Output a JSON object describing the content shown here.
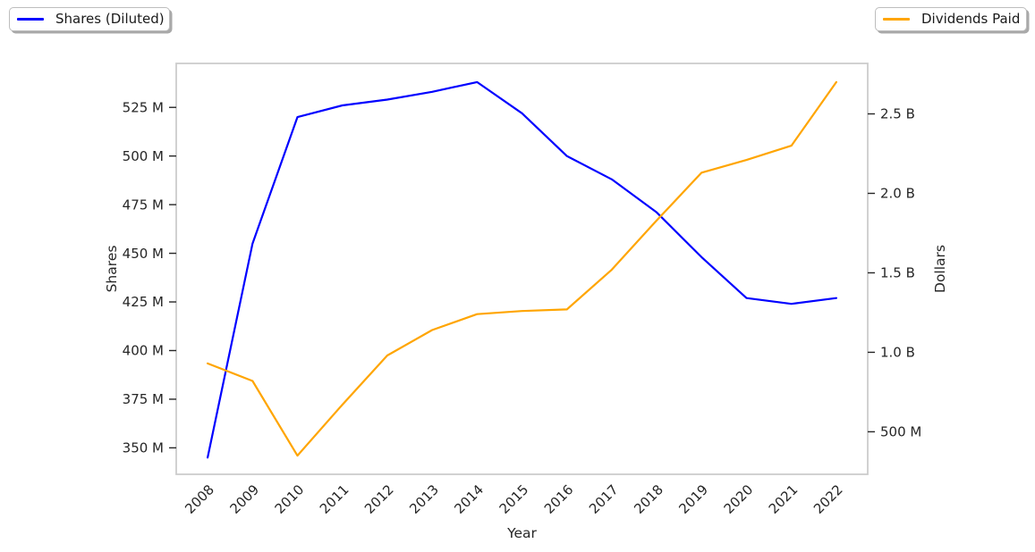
{
  "figure": {
    "background": "#ffffff",
    "plot_border_color": "#cccccc",
    "text_color": "#262626"
  },
  "legends": {
    "shares": {
      "label": "Shares (Diluted)",
      "color": "#0000ff"
    },
    "dividends": {
      "label": "Dividends Paid",
      "color": "#ffa500"
    }
  },
  "chart_data": {
    "type": "line",
    "title": "",
    "xlabel": "Year",
    "ylabel_left": "Shares",
    "ylabel_right": "Dollars",
    "grid": false,
    "legend_position": [
      "outside upper left",
      "outside upper right"
    ],
    "x": [
      2008,
      2009,
      2010,
      2011,
      2012,
      2013,
      2014,
      2015,
      2016,
      2017,
      2018,
      2019,
      2020,
      2021,
      2022
    ],
    "series": [
      {
        "name": "Shares (Diluted)",
        "axis": "left",
        "color": "#0000ff",
        "units": "shares (millions)",
        "values_millions": [
          345,
          455,
          520,
          526,
          529,
          533,
          538,
          522,
          500,
          488,
          471,
          448,
          427,
          424,
          427
        ]
      },
      {
        "name": "Dividends Paid",
        "axis": "right",
        "color": "#ffa500",
        "units": "dollars (billions)",
        "values_billions": [
          0.93,
          0.82,
          0.35,
          0.67,
          0.98,
          1.14,
          1.24,
          1.26,
          1.27,
          1.52,
          1.83,
          2.13,
          2.21,
          2.3,
          2.7
        ]
      }
    ],
    "x_axis": {
      "tick_labels": [
        "2008",
        "2009",
        "2010",
        "2011",
        "2012",
        "2013",
        "2014",
        "2015",
        "2016",
        "2017",
        "2018",
        "2019",
        "2020",
        "2021",
        "2022"
      ],
      "tick_values": [
        2008,
        2009,
        2010,
        2011,
        2012,
        2013,
        2014,
        2015,
        2016,
        2017,
        2018,
        2019,
        2020,
        2021,
        2022
      ],
      "range": [
        2007.3,
        2022.7
      ],
      "label_rotation_deg": 45
    },
    "left_axis": {
      "tick_labels": [
        "350 M",
        "375 M",
        "400 M",
        "425 M",
        "450 M",
        "475 M",
        "500 M",
        "525 M"
      ],
      "tick_values_millions": [
        350,
        375,
        400,
        425,
        450,
        475,
        500,
        525
      ],
      "range_millions": [
        336.4,
        547.6
      ]
    },
    "right_axis": {
      "tick_labels": [
        "500 M",
        "1.0 B",
        "1.5 B",
        "2.0 B",
        "2.5 B"
      ],
      "tick_values_billions": [
        0.5,
        1.0,
        1.5,
        2.0,
        2.5
      ],
      "range_billions": [
        0.2325,
        2.8175
      ]
    }
  }
}
